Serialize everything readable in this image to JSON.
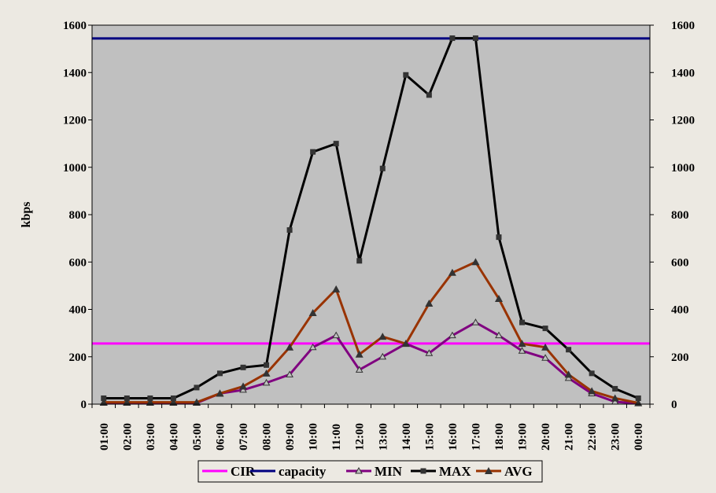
{
  "chart_data": {
    "type": "line",
    "ylabel": "kbps",
    "ylim": [
      0,
      1600
    ],
    "y_ticks": [
      "0",
      "200",
      "400",
      "600",
      "800",
      "1000",
      "1200",
      "1400",
      "1600"
    ],
    "secondary_y_ticks": [
      "0",
      "200",
      "400",
      "600",
      "800",
      "1000",
      "1200",
      "1400",
      "1600"
    ],
    "categories": [
      "01:00",
      "02:00",
      "03:00",
      "04:00",
      "05:00",
      "06:00",
      "07:00",
      "08:00",
      "09:00",
      "10:00",
      "11:00",
      "12:00",
      "13:00",
      "14:00",
      "15:00",
      "16:00",
      "17:00",
      "18:00",
      "19:00",
      "20:00",
      "21:00",
      "22:00",
      "23:00",
      "00:00"
    ],
    "grid": false,
    "plot_background": "#C0C0C0",
    "legend_position": "bottom",
    "series": [
      {
        "name": "CIR",
        "color": "#FF00FF",
        "marker": "none",
        "values": [
          256,
          256,
          256,
          256,
          256,
          256,
          256,
          256,
          256,
          256,
          256,
          256,
          256,
          256,
          256,
          256,
          256,
          256,
          256,
          256,
          256,
          256,
          256,
          256
        ]
      },
      {
        "name": "capacity",
        "color": "#000080",
        "marker": "none",
        "values": [
          1544,
          1544,
          1544,
          1544,
          1544,
          1544,
          1544,
          1544,
          1544,
          1544,
          1544,
          1544,
          1544,
          1544,
          1544,
          1544,
          1544,
          1544,
          1544,
          1544,
          1544,
          1544,
          1544,
          1544
        ]
      },
      {
        "name": "MIN",
        "color": "#800080",
        "marker": "triangle-open",
        "values": [
          5,
          5,
          5,
          5,
          5,
          45,
          60,
          90,
          125,
          240,
          290,
          145,
          200,
          255,
          215,
          290,
          345,
          290,
          225,
          195,
          110,
          45,
          10,
          3
        ]
      },
      {
        "name": "MAX",
        "color": "#000000",
        "marker": "square",
        "values": [
          25,
          25,
          25,
          25,
          70,
          130,
          155,
          165,
          735,
          1065,
          1100,
          605,
          995,
          1390,
          1305,
          1545,
          1545,
          705,
          345,
          320,
          230,
          130,
          65,
          25
        ]
      },
      {
        "name": "AVG",
        "color": "#993300",
        "marker": "triangle",
        "values": [
          8,
          8,
          8,
          8,
          8,
          45,
          75,
          130,
          240,
          385,
          485,
          210,
          285,
          255,
          425,
          555,
          600,
          445,
          255,
          240,
          125,
          55,
          25,
          5
        ]
      }
    ]
  }
}
